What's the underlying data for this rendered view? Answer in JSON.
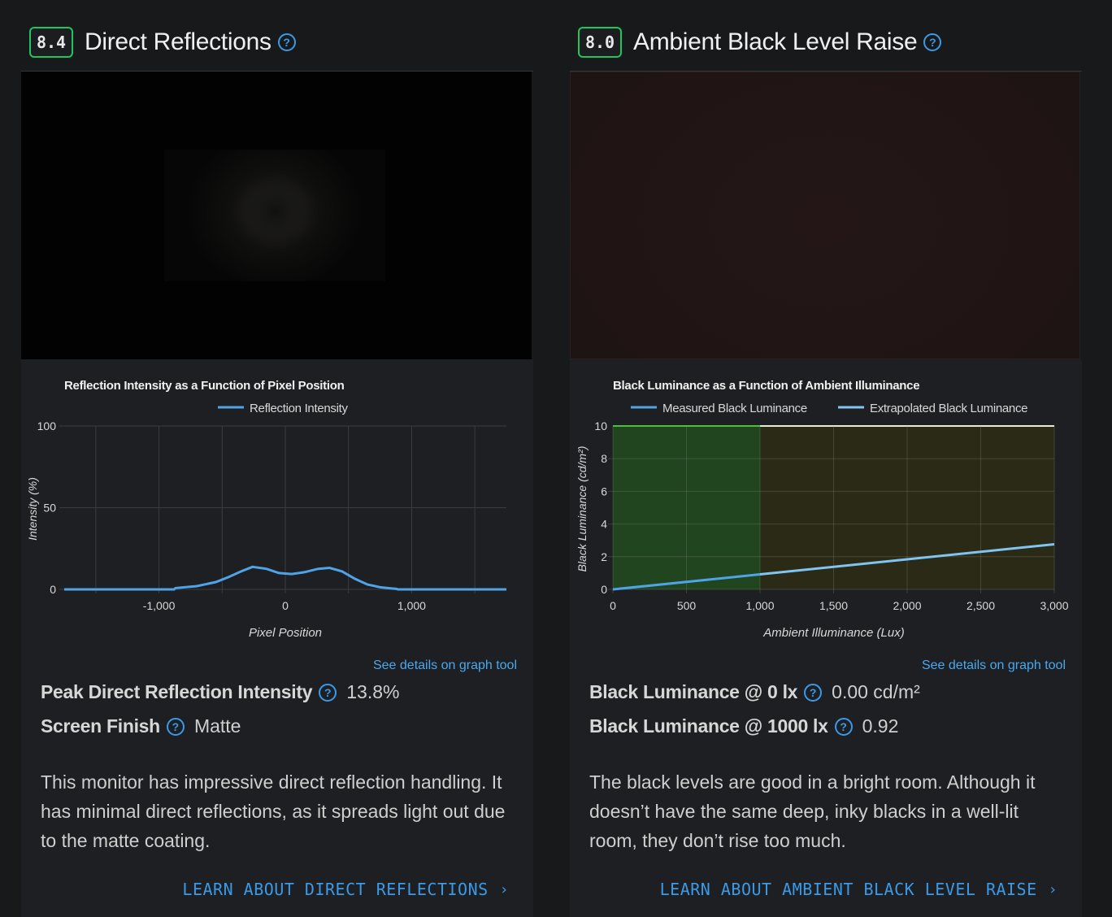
{
  "left": {
    "score": "8.4",
    "title": "Direct Reflections",
    "help_icon": "question-circle-icon",
    "chart": {
      "title": "Reflection Intensity as a Function of Pixel Position",
      "legend": [
        "Reflection Intensity"
      ],
      "ylabel": "Intensity (%)",
      "xlabel": "Pixel Position",
      "yticks": [
        "100",
        "50",
        "0"
      ],
      "xticks": [
        "-1,000",
        "0",
        "1,000"
      ],
      "link": "See details on graph tool"
    },
    "metrics": [
      {
        "label": "Peak Direct Reflection Intensity",
        "value": "13.8%"
      },
      {
        "label": "Screen Finish",
        "value": "Matte"
      }
    ],
    "description": "This monitor has impressive direct reflection handling. It has minimal direct reflections, as it spreads light out due to the matte coating.",
    "learn_link": "LEARN ABOUT DIRECT REFLECTIONS"
  },
  "right": {
    "score": "8.0",
    "title": "Ambient Black Level Raise",
    "help_icon": "question-circle-icon",
    "chart": {
      "title": "Black Luminance as a Function of Ambient Illuminance",
      "legend": [
        "Measured Black Luminance",
        "Extrapolated Black Luminance"
      ],
      "ylabel": "Black Luminance (cd/m²)",
      "xlabel": "Ambient Illuminance (Lux)",
      "yticks": [
        "10",
        "8",
        "6",
        "4",
        "2",
        "0"
      ],
      "xticks": [
        "0",
        "500",
        "1,000",
        "1,500",
        "2,000",
        "2,500",
        "3,000"
      ],
      "link": "See details on graph tool"
    },
    "metrics": [
      {
        "label": "Black Luminance @ 0 lx",
        "value": "0.00 cd/m²"
      },
      {
        "label": "Black Luminance @ 1000 lx",
        "value": "0.92"
      }
    ],
    "description": "The black levels are good in a bright room. Although it doesn’t have the same deep, inky blacks in a well-lit room, they don’t rise too much.",
    "learn_link": "LEARN ABOUT AMBIENT BLACK LEVEL RAISE"
  },
  "colors": {
    "score_border": "#1ec660",
    "accent_blue": "#3b9ae8",
    "series_line": "#4fa3e6",
    "good_zone": "#21461f",
    "ok_zone": "#2a2a16"
  },
  "chart_data": [
    {
      "type": "line",
      "title": "Reflection Intensity as a Function of Pixel Position",
      "xlabel": "Pixel Position",
      "ylabel": "Intensity (%)",
      "xlim": [
        -1750,
        1750
      ],
      "ylim": [
        0,
        100
      ],
      "grid": true,
      "legend": "top",
      "series": [
        {
          "name": "Reflection Intensity",
          "x": [
            -1750,
            -880,
            -870,
            -700,
            -550,
            -450,
            -350,
            -260,
            -150,
            -50,
            50,
            150,
            260,
            350,
            450,
            550,
            650,
            750,
            850,
            880,
            890,
            1750
          ],
          "y": [
            0,
            0,
            0.8,
            2,
            4.5,
            7.5,
            11,
            13.8,
            12.6,
            10,
            9.4,
            10.5,
            12.6,
            13.2,
            11,
            6.5,
            3,
            1.3,
            0.5,
            0.3,
            0,
            0
          ]
        }
      ]
    },
    {
      "type": "line",
      "title": "Black Luminance as a Function of Ambient Illuminance",
      "xlabel": "Ambient Illuminance (Lux)",
      "ylabel": "Black Luminance (cd/m²)",
      "xlim": [
        0,
        3000
      ],
      "ylim": [
        0,
        10
      ],
      "grid": true,
      "legend": "top",
      "bands": [
        {
          "from": 0,
          "to": 1000,
          "color": "#21461f"
        },
        {
          "from": 1000,
          "to": 3000,
          "color": "#2a2a16"
        }
      ],
      "series": [
        {
          "name": "Measured Black Luminance",
          "x": [
            0,
            1000
          ],
          "y": [
            0,
            0.92
          ]
        },
        {
          "name": "Extrapolated Black Luminance",
          "x": [
            1000,
            3000
          ],
          "y": [
            0.92,
            2.76
          ]
        }
      ]
    }
  ]
}
